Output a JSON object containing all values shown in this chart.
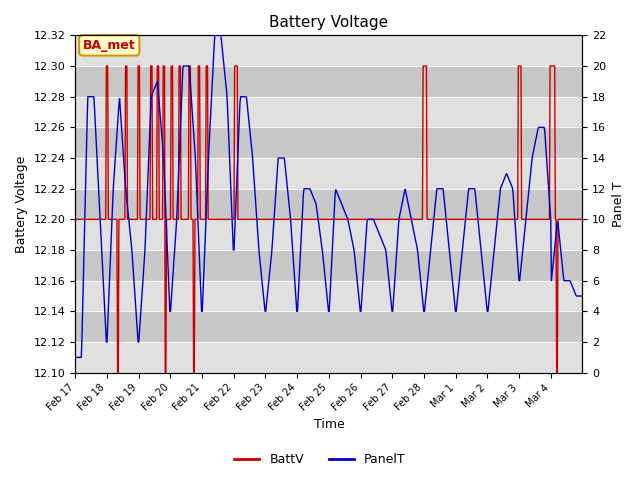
{
  "title": "Battery Voltage",
  "xlabel": "Time",
  "ylabel_left": "Battery Voltage",
  "ylabel_right": "Panel T",
  "annotation_text": "BA_met",
  "ylim_left": [
    12.1,
    12.32
  ],
  "ylim_right": [
    0,
    22
  ],
  "yticks_left": [
    12.1,
    12.12,
    12.14,
    12.16,
    12.18,
    12.2,
    12.22,
    12.24,
    12.26,
    12.28,
    12.3,
    12.32
  ],
  "yticks_right": [
    0,
    2,
    4,
    6,
    8,
    10,
    12,
    14,
    16,
    18,
    20,
    22
  ],
  "xtick_labels": [
    "Feb 17",
    "Feb 18",
    "Feb 19",
    "Feb 20",
    "Feb 21",
    "Feb 22",
    "Feb 23",
    "Feb 24",
    "Feb 25",
    "Feb 26",
    "Feb 27",
    "Feb 28",
    "Mar 1",
    "Mar 2",
    "Mar 3",
    "Mar 4"
  ],
  "red_color": "#cc0000",
  "blue_color": "#0000cc",
  "annotation_bg": "#ffffcc",
  "annotation_border": "#cc9900",
  "strip_light": "#e0e0e0",
  "strip_dark": "#c8c8c8",
  "plot_bg": "#d4d4d4"
}
